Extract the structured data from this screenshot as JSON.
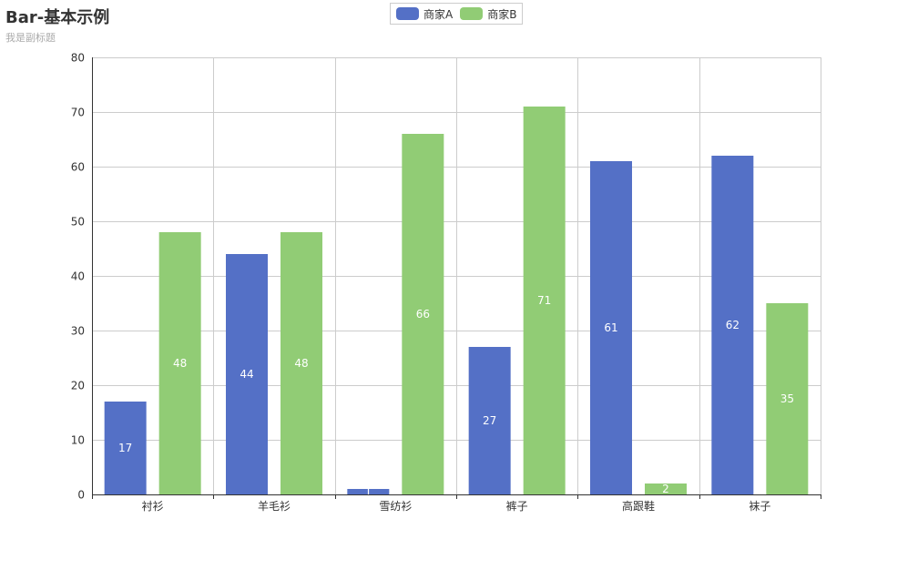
{
  "colors": {
    "series_a": "#5470c6",
    "series_b": "#91cc75",
    "grid": "#cccccc",
    "axis": "#333333",
    "label": "#ffffff"
  },
  "chart_data": {
    "type": "bar",
    "title": "Bar-基本示例",
    "subtitle": "我是副标题",
    "categories": [
      "衬衫",
      "羊毛衫",
      "雪纺衫",
      "裤子",
      "高跟鞋",
      "袜子"
    ],
    "series": [
      {
        "name": "商家A",
        "color": "#5470c6",
        "values": [
          17,
          44,
          1,
          27,
          61,
          62
        ]
      },
      {
        "name": "商家B",
        "color": "#91cc75",
        "values": [
          48,
          48,
          66,
          71,
          2,
          35
        ]
      }
    ],
    "ylim": [
      0,
      80
    ],
    "yticks": [
      "0",
      "10",
      "20",
      "30",
      "40",
      "50",
      "60",
      "70",
      "80"
    ],
    "grid": true,
    "legend_position": "top-center",
    "show_labels": true
  }
}
